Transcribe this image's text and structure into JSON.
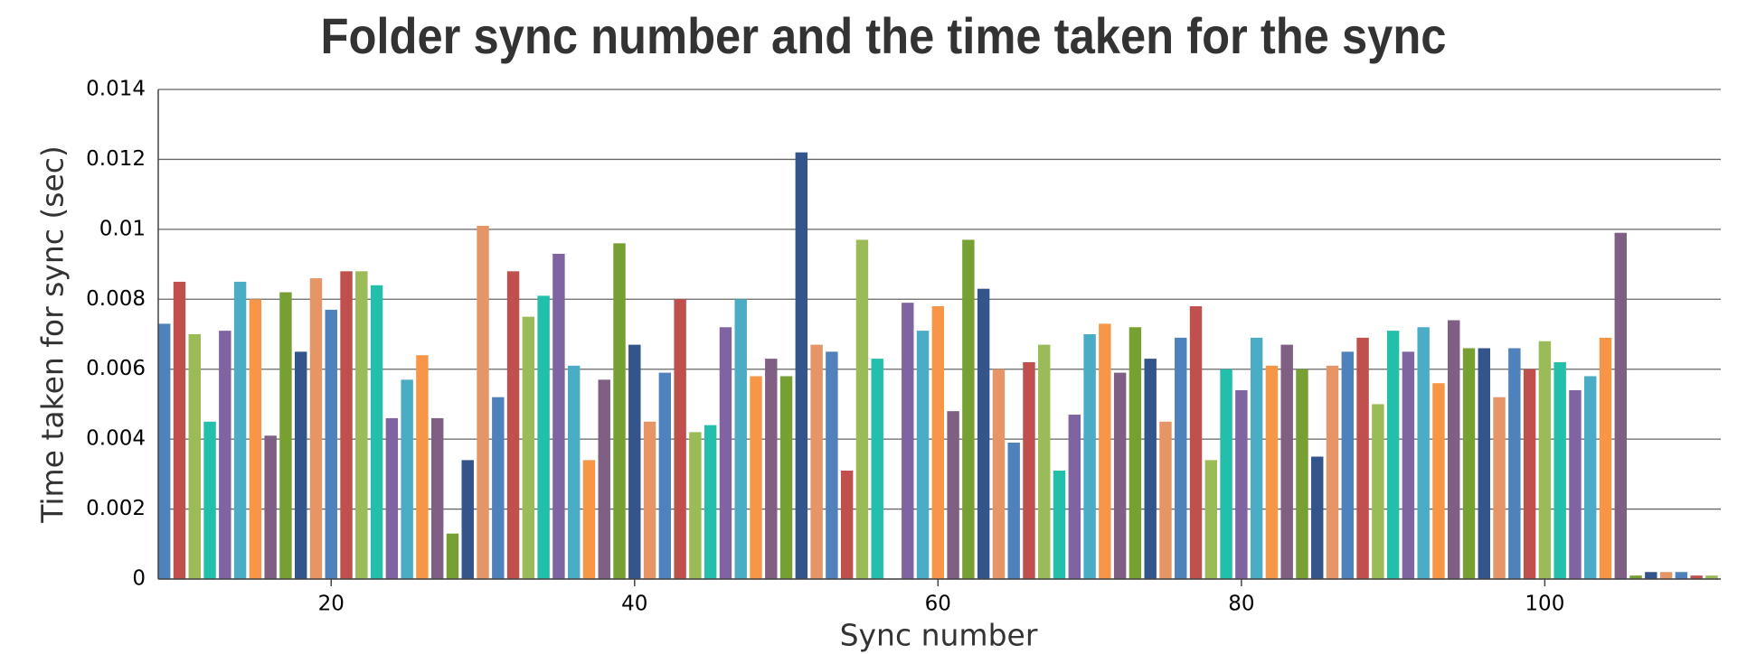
{
  "chart_data": {
    "type": "bar",
    "title": "Folder sync number and the time taken for the sync",
    "xlabel": "Sync number",
    "ylabel": "Time taken for sync (sec)",
    "x": [
      9,
      10,
      11,
      12,
      13,
      14,
      15,
      16,
      17,
      18,
      19,
      20,
      21,
      22,
      23,
      24,
      25,
      26,
      27,
      28,
      29,
      30,
      31,
      32,
      33,
      34,
      35,
      36,
      37,
      38,
      39,
      40,
      41,
      42,
      43,
      44,
      45,
      46,
      47,
      48,
      49,
      50,
      51,
      52,
      53,
      54,
      55,
      56,
      58,
      59,
      60,
      61,
      62,
      63,
      64,
      65,
      66,
      67,
      68,
      69,
      70,
      71,
      72,
      73,
      74,
      75,
      76,
      77,
      78,
      79,
      80,
      81,
      82,
      83,
      84,
      85,
      86,
      87,
      88,
      89,
      90,
      91,
      92,
      93,
      94,
      95,
      96,
      97,
      98,
      99,
      100,
      101,
      102,
      103,
      104,
      105,
      106,
      107,
      108,
      109,
      110,
      111
    ],
    "values": [
      0.0073,
      0.0085,
      0.007,
      0.0045,
      0.0071,
      0.0085,
      0.008,
      0.0041,
      0.0082,
      0.0065,
      0.0086,
      0.0077,
      0.0088,
      0.0088,
      0.0084,
      0.0046,
      0.0057,
      0.0064,
      0.0046,
      0.0013,
      0.0034,
      0.0101,
      0.0052,
      0.0088,
      0.0075,
      0.0081,
      0.0093,
      0.0061,
      0.0034,
      0.0057,
      0.0096,
      0.0067,
      0.0045,
      0.0059,
      0.008,
      0.0042,
      0.0044,
      0.0072,
      0.008,
      0.0058,
      0.0063,
      0.0058,
      0.0122,
      0.0067,
      0.0065,
      0.0031,
      0.0097,
      0.0063,
      0.0079,
      0.0071,
      0.0078,
      0.0048,
      0.0097,
      0.0083,
      0.006,
      0.0039,
      0.0062,
      0.0067,
      0.0031,
      0.0047,
      0.007,
      0.0073,
      0.0059,
      0.0072,
      0.0063,
      0.0045,
      0.0069,
      0.0078,
      0.0034,
      0.006,
      0.0054,
      0.0069,
      0.0061,
      0.0067,
      0.006,
      0.0035,
      0.0061,
      0.0065,
      0.0069,
      0.005,
      0.0071,
      0.0065,
      0.0072,
      0.0056,
      0.0074,
      0.0066,
      0.0066,
      0.0052,
      0.0066,
      0.006,
      0.0068,
      0.0062,
      0.0054,
      0.0058,
      0.0069,
      0.0099,
      0.0001,
      0.0002,
      0.0002,
      0.0002,
      0.0001,
      0.0001
    ],
    "colors": [
      "#4F81BC",
      "#C0504E",
      "#9BBB58",
      "#23BFAA",
      "#8064A1",
      "#4AACC5",
      "#F79647",
      "#7F6084",
      "#77A033",
      "#33558B",
      "#E59566"
    ],
    "xlim": [
      8.6,
      111.6
    ],
    "xticks": [
      20,
      40,
      60,
      80,
      100
    ],
    "ylim": [
      0,
      0.014
    ],
    "yticks": [
      0,
      0.002,
      0.004,
      0.006,
      0.008,
      0.01,
      0.012,
      0.014
    ],
    "grid": true
  }
}
